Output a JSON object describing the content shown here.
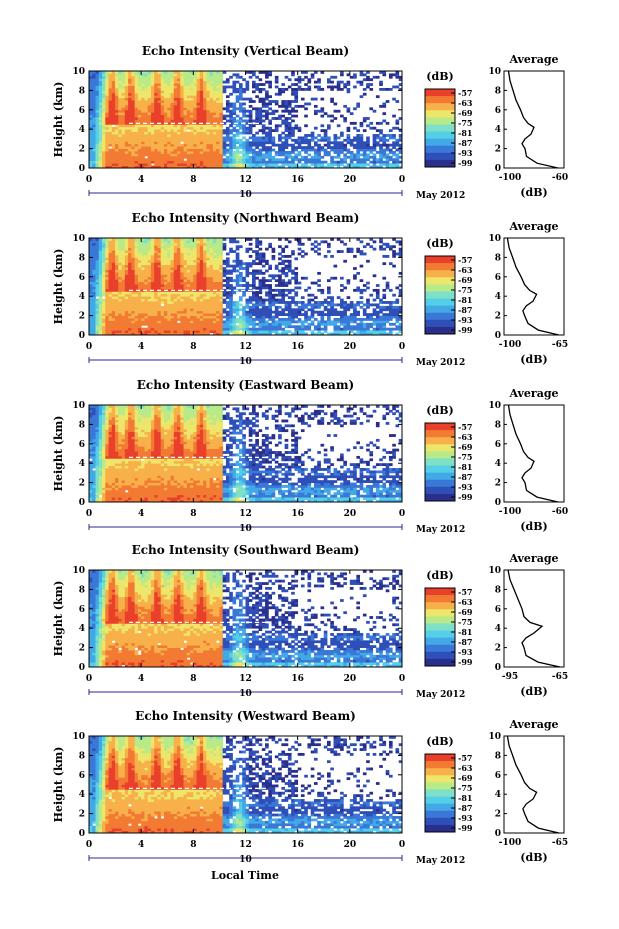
{
  "figure": {
    "month_label": "May 2012",
    "date_label": "10",
    "xlabel": "Local Time",
    "avg_title": "Average",
    "db_label": "(dB)"
  },
  "colors": {
    "scale": [
      "#2b2f8c",
      "#2f4fb8",
      "#3a78d8",
      "#42a8e6",
      "#55cfe8",
      "#7fe0c8",
      "#b8ea8a",
      "#eee66a",
      "#f7b04a",
      "#f27a33",
      "#e8402b"
    ]
  },
  "chart_data": [
    {
      "type": "heatmap",
      "title": "Echo Intensity (Vertical Beam)",
      "ylabel": "Height (km)",
      "xlim": [
        0,
        24
      ],
      "ylim": [
        0,
        10
      ],
      "xticks": [
        "0",
        "4",
        "8",
        "12",
        "16",
        "20",
        "0"
      ],
      "yticks": [
        "0",
        "2",
        "4",
        "6",
        "8",
        "10"
      ],
      "colorbar": {
        "label": "(dB)",
        "ticks": [
          "-57",
          "-63",
          "-69",
          "-75",
          "-81",
          "-87",
          "-93",
          "-99"
        ]
      },
      "average": {
        "title": "Average",
        "xlabel": "(dB)",
        "xticks": [
          "-100",
          "-60"
        ],
        "xlim": [
          -100,
          -60
        ],
        "profile": [
          [
            -64,
            0
          ],
          [
            -78,
            0.5
          ],
          [
            -85,
            1.2
          ],
          [
            -86,
            2
          ],
          [
            -88,
            2.5
          ],
          [
            -86,
            3
          ],
          [
            -82,
            3.5
          ],
          [
            -80,
            4.2
          ],
          [
            -84,
            4.6
          ],
          [
            -87,
            5.2
          ],
          [
            -89,
            6
          ],
          [
            -92,
            7
          ],
          [
            -94,
            8
          ],
          [
            -96,
            9
          ],
          [
            -97,
            10
          ]
        ]
      }
    },
    {
      "type": "heatmap",
      "title": "Echo Intensity (Northward Beam)",
      "ylabel": "Height (km)",
      "xlim": [
        0,
        24
      ],
      "ylim": [
        0,
        10
      ],
      "xticks": [
        "0",
        "4",
        "8",
        "12",
        "16",
        "20",
        "0"
      ],
      "yticks": [
        "0",
        "2",
        "4",
        "6",
        "8",
        "10"
      ],
      "colorbar": {
        "label": "(dB)",
        "ticks": [
          "-57",
          "-63",
          "-69",
          "-75",
          "-81",
          "-87",
          "-93",
          "-99"
        ]
      },
      "average": {
        "title": "Average",
        "xlabel": "(dB)",
        "xticks": [
          "-100",
          "-65"
        ],
        "xlim": [
          -100,
          -65
        ],
        "profile": [
          [
            -68,
            0
          ],
          [
            -80,
            0.5
          ],
          [
            -86,
            1.2
          ],
          [
            -88,
            2
          ],
          [
            -89,
            2.5
          ],
          [
            -87,
            3
          ],
          [
            -83,
            3.5
          ],
          [
            -81,
            4.2
          ],
          [
            -85,
            4.6
          ],
          [
            -88,
            5.2
          ],
          [
            -90,
            6
          ],
          [
            -93,
            7
          ],
          [
            -95,
            8
          ],
          [
            -97,
            9
          ],
          [
            -98,
            10
          ]
        ]
      }
    },
    {
      "type": "heatmap",
      "title": "Echo Intensity (Eastward Beam)",
      "ylabel": "Height (km)",
      "xlim": [
        0,
        24
      ],
      "ylim": [
        0,
        10
      ],
      "xticks": [
        "0",
        "4",
        "8",
        "12",
        "16",
        "20",
        "0"
      ],
      "yticks": [
        "0",
        "2",
        "4",
        "6",
        "8",
        "10"
      ],
      "colorbar": {
        "label": "(dB)",
        "ticks": [
          "-57",
          "-63",
          "-69",
          "-75",
          "-81",
          "-87",
          "-93",
          "-99"
        ]
      },
      "average": {
        "title": "Average",
        "xlabel": "(dB)",
        "xticks": [
          "-100",
          "-60"
        ],
        "xlim": [
          -100,
          -60
        ],
        "profile": [
          [
            -64,
            0
          ],
          [
            -78,
            0.5
          ],
          [
            -85,
            1.2
          ],
          [
            -86,
            2
          ],
          [
            -88,
            2.5
          ],
          [
            -86,
            3
          ],
          [
            -82,
            3.5
          ],
          [
            -80,
            4.2
          ],
          [
            -84,
            4.6
          ],
          [
            -87,
            5.2
          ],
          [
            -89,
            6
          ],
          [
            -92,
            7
          ],
          [
            -94,
            8
          ],
          [
            -96,
            9
          ],
          [
            -97,
            10
          ]
        ]
      }
    },
    {
      "type": "heatmap",
      "title": "Echo Intensity (Southward Beam)",
      "ylabel": "Height (km)",
      "xlim": [
        0,
        24
      ],
      "ylim": [
        0,
        10
      ],
      "xticks": [
        "0",
        "4",
        "8",
        "12",
        "16",
        "20",
        "0"
      ],
      "yticks": [
        "0",
        "2",
        "4",
        "6",
        "8",
        "10"
      ],
      "colorbar": {
        "label": "(dB)",
        "ticks": [
          "-57",
          "-63",
          "-69",
          "-75",
          "-81",
          "-87",
          "-93",
          "-99"
        ]
      },
      "average": {
        "title": "Average",
        "xlabel": "(dB)",
        "xticks": [
          "-95",
          "-65"
        ],
        "xlim": [
          -95,
          -65
        ],
        "profile": [
          [
            -67,
            0
          ],
          [
            -78,
            0.5
          ],
          [
            -84,
            1.2
          ],
          [
            -85,
            2
          ],
          [
            -86,
            2.5
          ],
          [
            -84,
            3
          ],
          [
            -80,
            3.5
          ],
          [
            -76,
            4.2
          ],
          [
            -82,
            4.6
          ],
          [
            -85,
            5.2
          ],
          [
            -86,
            6
          ],
          [
            -88,
            7
          ],
          [
            -90,
            8
          ],
          [
            -92,
            9
          ],
          [
            -93,
            10
          ]
        ]
      }
    },
    {
      "type": "heatmap",
      "title": "Echo Intensity (Westward Beam)",
      "ylabel": "Height (km)",
      "xlim": [
        0,
        24
      ],
      "ylim": [
        0,
        10
      ],
      "xticks": [
        "0",
        "4",
        "8",
        "12",
        "16",
        "20",
        "0"
      ],
      "yticks": [
        "0",
        "2",
        "4",
        "6",
        "8",
        "10"
      ],
      "colorbar": {
        "label": "(dB)",
        "ticks": [
          "-57",
          "-63",
          "-69",
          "-75",
          "-81",
          "-87",
          "-93",
          "-99"
        ]
      },
      "average": {
        "title": "Average",
        "xlabel": "(dB)",
        "xticks": [
          "-100",
          "-65"
        ],
        "xlim": [
          -100,
          -65
        ],
        "profile": [
          [
            -68,
            0
          ],
          [
            -80,
            0.5
          ],
          [
            -86,
            1.2
          ],
          [
            -88,
            2
          ],
          [
            -89,
            2.5
          ],
          [
            -87,
            3
          ],
          [
            -83,
            3.5
          ],
          [
            -81,
            4.2
          ],
          [
            -85,
            4.6
          ],
          [
            -88,
            5.2
          ],
          [
            -90,
            6
          ],
          [
            -93,
            7
          ],
          [
            -95,
            8
          ],
          [
            -97,
            9
          ],
          [
            -98,
            10
          ]
        ]
      }
    }
  ]
}
